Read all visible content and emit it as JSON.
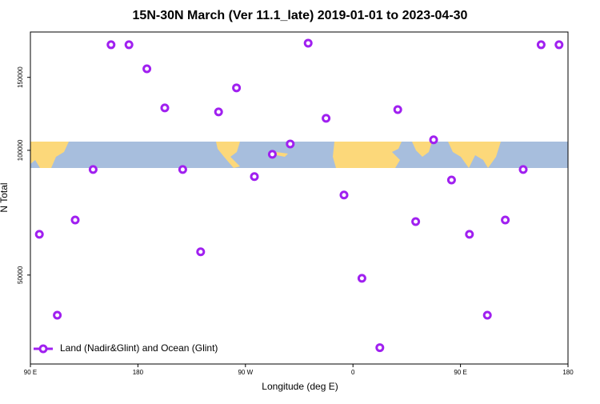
{
  "chart_data": {
    "type": "scatter",
    "title": "15N-30N March (Ver 11.1_late)   2019-01-01 to 2023-04-30",
    "x_label": "Longitude (deg E)",
    "y_label": "N Total",
    "log_y": true,
    "legend_position": "lower left",
    "xlim": [
      90,
      540
    ],
    "xticks": [
      {
        "value": 90,
        "label": "90 E"
      },
      {
        "value": 180,
        "label": "180"
      },
      {
        "value": 270,
        "label": "90 W"
      },
      {
        "value": 360,
        "label": "0"
      },
      {
        "value": 450,
        "label": "90 E"
      },
      {
        "value": 540,
        "label": "180"
      }
    ],
    "ylim": [
      30500,
      193000
    ],
    "yticks": [
      50000,
      100000,
      150000
    ],
    "series": [
      {
        "name": "Land (Nadir&Glint) and Ocean (Glint)",
        "color": "#a020f0",
        "x": [
          97.5,
          112.5,
          127.5,
          142.5,
          157.5,
          172.5,
          187.5,
          202.5,
          217.5,
          232.5,
          247.5,
          262.5,
          277.5,
          292.5,
          307.5,
          322.5,
          337.5,
          352.5,
          367.5,
          382.5,
          397.5,
          412.5,
          427.5,
          442.5,
          457.5,
          472.5,
          487.5,
          502.5,
          517.5,
          532.5
        ],
        "values": [
          62700,
          40000,
          67900,
          89900,
          179800,
          179800,
          157300,
          126600,
          89900,
          56900,
          123800,
          141500,
          86400,
          97800,
          103600,
          181400,
          119500,
          78000,
          49100,
          33400,
          125400,
          67300,
          106000,
          84800,
          62700,
          40000,
          67900,
          89900,
          179800,
          179800
        ]
      }
    ]
  }
}
